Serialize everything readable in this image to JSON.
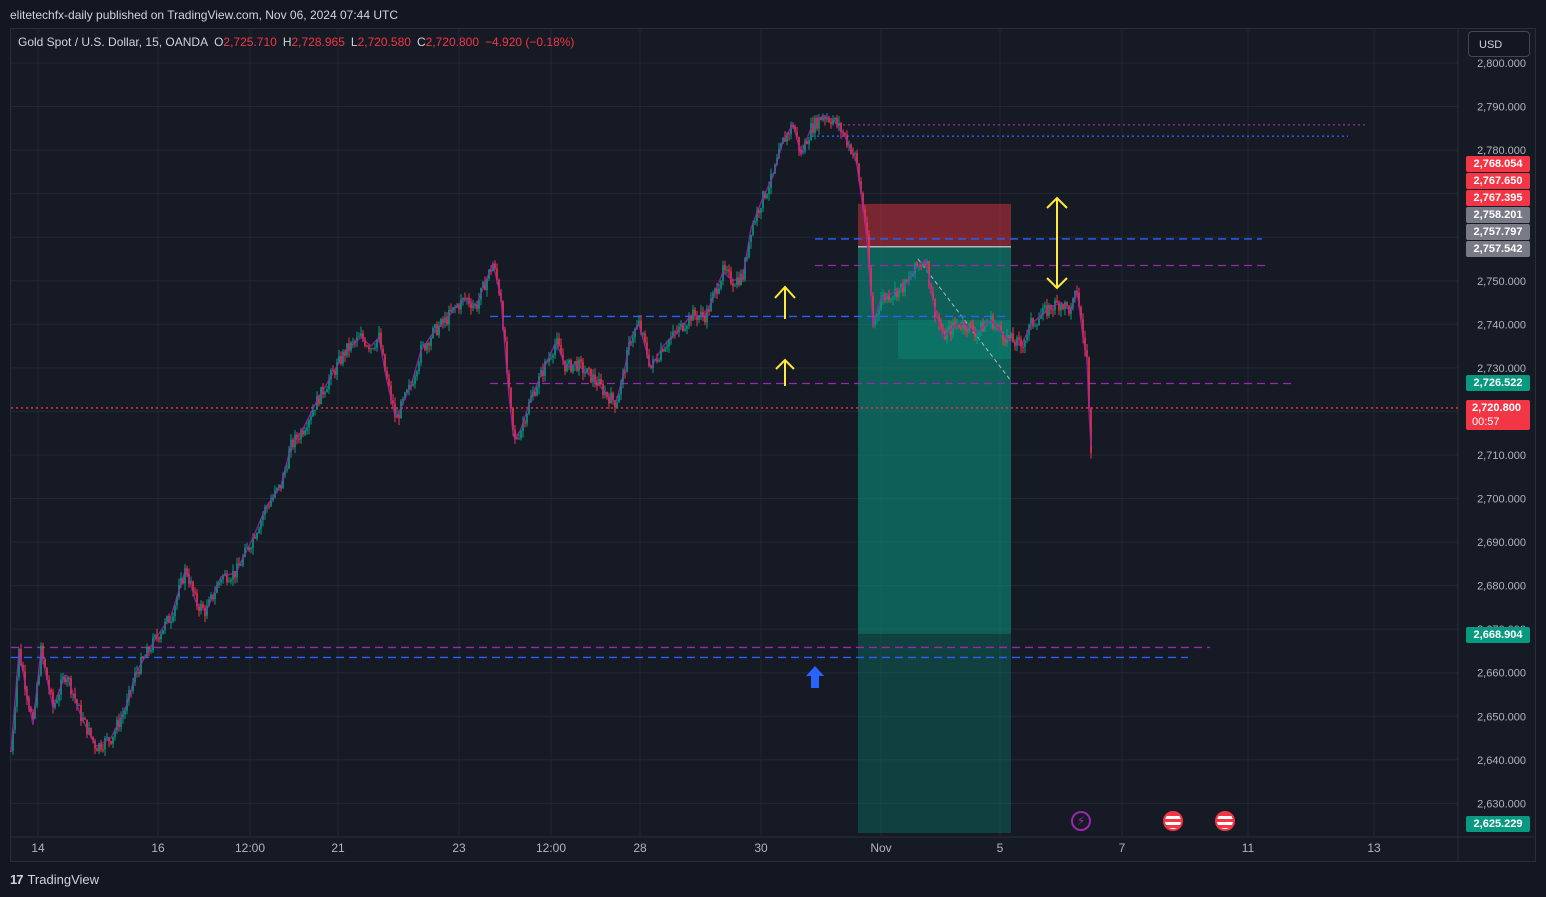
{
  "header": {
    "published": "elitetechfx-daily published on TradingView.com, Nov 06, 2024 07:44 UTC"
  },
  "symbol": {
    "name": "Gold Spot / U.S. Dollar, 15, OANDA",
    "open_label": "O",
    "open": "2,725.710",
    "high_label": "H",
    "high": "2,728.965",
    "low_label": "L",
    "low": "2,720.580",
    "close_label": "C",
    "close": "2,720.800",
    "change": "−4.920 (−0.18%)"
  },
  "currency": "USD",
  "price_axis": {
    "labels": [
      "2,800.000",
      "2,790.000",
      "2,780.000",
      "2,750.000",
      "2,740.000",
      "2,730.000",
      "2,710.000",
      "2,700.000",
      "2,690.000",
      "2,680.000",
      "2,670.000",
      "2,660.000",
      "2,650.000",
      "2,640.000",
      "2,630.000"
    ],
    "values": [
      2800,
      2790,
      2780,
      2750,
      2740,
      2730,
      2710,
      2700,
      2690,
      2680,
      2670,
      2660,
      2650,
      2640,
      2630
    ]
  },
  "price_tags": [
    {
      "label": "2,768.054",
      "color": "#f23645"
    },
    {
      "label": "2,767.650",
      "color": "#f23645"
    },
    {
      "label": "2,767.395",
      "color": "#f23645"
    },
    {
      "label": "2,758.201",
      "color": "#787b86"
    },
    {
      "label": "2,757.797",
      "color": "#787b86"
    },
    {
      "label": "2,757.542",
      "color": "#787b86"
    },
    {
      "label": "2,726.522",
      "color": "#089981"
    },
    {
      "label": "2,668.904",
      "color": "#089981"
    },
    {
      "label": "2,625.229",
      "color": "#089981"
    }
  ],
  "last_price": {
    "label": "2,720.800",
    "countdown": "00:57",
    "color": "#f23645"
  },
  "time_axis": {
    "labels": [
      "14",
      "16",
      "12:00",
      "21",
      "23",
      "12:00",
      "28",
      "30",
      "Nov",
      "5",
      "7",
      "11",
      "13"
    ]
  },
  "chart_data": {
    "type": "candlestick",
    "symbol": "XAUUSD",
    "timeframe": "15",
    "ylim": [
      2622,
      2805
    ],
    "y_axis_side": "right",
    "grid": true,
    "price_path": [
      [
        0,
        2642
      ],
      [
        8,
        2665
      ],
      [
        22,
        2648
      ],
      [
        30,
        2665
      ],
      [
        42,
        2652
      ],
      [
        55,
        2660
      ],
      [
        70,
        2650
      ],
      [
        85,
        2643
      ],
      [
        100,
        2645
      ],
      [
        115,
        2652
      ],
      [
        125,
        2660
      ],
      [
        145,
        2668
      ],
      [
        160,
        2673
      ],
      [
        175,
        2684
      ],
      [
        185,
        2676
      ],
      [
        195,
        2674
      ],
      [
        210,
        2682
      ],
      [
        225,
        2683
      ],
      [
        240,
        2690
      ],
      [
        255,
        2698
      ],
      [
        270,
        2703
      ],
      [
        280,
        2712
      ],
      [
        292,
        2716
      ],
      [
        305,
        2722
      ],
      [
        320,
        2728
      ],
      [
        335,
        2734
      ],
      [
        350,
        2737
      ],
      [
        360,
        2735
      ],
      [
        368,
        2737
      ],
      [
        375,
        2728
      ],
      [
        385,
        2718
      ],
      [
        392,
        2722
      ],
      [
        400,
        2726
      ],
      [
        410,
        2734
      ],
      [
        422,
        2738
      ],
      [
        435,
        2741
      ],
      [
        445,
        2744
      ],
      [
        455,
        2746
      ],
      [
        465,
        2744
      ],
      [
        475,
        2750
      ],
      [
        482,
        2754
      ],
      [
        490,
        2746
      ],
      [
        497,
        2726
      ],
      [
        503,
        2713
      ],
      [
        510,
        2716
      ],
      [
        520,
        2723
      ],
      [
        535,
        2731
      ],
      [
        545,
        2736
      ],
      [
        555,
        2730
      ],
      [
        565,
        2731
      ],
      [
        575,
        2729
      ],
      [
        585,
        2727
      ],
      [
        595,
        2724
      ],
      [
        605,
        2722
      ],
      [
        612,
        2728
      ],
      [
        620,
        2737
      ],
      [
        628,
        2740
      ],
      [
        640,
        2730
      ],
      [
        652,
        2735
      ],
      [
        665,
        2738
      ],
      [
        680,
        2742
      ],
      [
        695,
        2742
      ],
      [
        705,
        2748
      ],
      [
        712,
        2752
      ],
      [
        722,
        2750
      ],
      [
        732,
        2751
      ],
      [
        740,
        2762
      ],
      [
        750,
        2768
      ],
      [
        762,
        2774
      ],
      [
        772,
        2782
      ],
      [
        782,
        2786
      ],
      [
        790,
        2779
      ],
      [
        800,
        2785
      ],
      [
        812,
        2788
      ],
      [
        822,
        2787
      ],
      [
        832,
        2784
      ],
      [
        845,
        2778
      ],
      [
        855,
        2762
      ],
      [
        862,
        2740
      ],
      [
        870,
        2746
      ],
      [
        880,
        2747
      ],
      [
        895,
        2749
      ],
      [
        905,
        2753
      ],
      [
        915,
        2755
      ],
      [
        922,
        2745
      ],
      [
        932,
        2737
      ],
      [
        945,
        2740
      ],
      [
        955,
        2740
      ],
      [
        965,
        2738
      ],
      [
        980,
        2741
      ],
      [
        995,
        2737
      ],
      [
        1010,
        2735
      ],
      [
        1020,
        2740
      ],
      [
        1030,
        2742
      ],
      [
        1040,
        2744
      ],
      [
        1050,
        2745
      ],
      [
        1060,
        2743
      ],
      [
        1066,
        2748
      ],
      [
        1072,
        2737
      ],
      [
        1076,
        2732
      ],
      [
        1078,
        2720
      ],
      [
        1080,
        2712
      ]
    ],
    "moving_average": {
      "type": "MA",
      "color": "#9c27b0"
    },
    "last_close": 2720.8,
    "trade_position": {
      "type": "short",
      "entry": 2757.8,
      "stop_loss": 2767.65,
      "target": 2668.9,
      "time_start": "Oct 31 late",
      "time_end": "Nov 5"
    },
    "horizontal_levels": [
      {
        "price": 2785.8,
        "style": "dotted",
        "color": "#9c27b0"
      },
      {
        "price": 2783.2,
        "style": "dotted",
        "color": "#2962ff"
      },
      {
        "price": 2759.6,
        "style": "dashed",
        "color": "#2962ff"
      },
      {
        "price": 2753.5,
        "style": "dashed",
        "color": "#9c27b0"
      },
      {
        "price": 2741.8,
        "style": "dashed",
        "color": "#2962ff"
      },
      {
        "price": 2726.4,
        "style": "dashed",
        "color": "#9c27b0"
      },
      {
        "price": 2665.8,
        "style": "dashed",
        "color": "#9c27b0"
      },
      {
        "price": 2663.5,
        "style": "dashed",
        "color": "#2962ff"
      },
      {
        "price": 2720.8,
        "style": "dotted",
        "color": "#f23645"
      }
    ],
    "annotations": [
      {
        "type": "arrow-up",
        "color": "#ffeb3b"
      },
      {
        "type": "arrow-up",
        "color": "#ffeb3b"
      },
      {
        "type": "double-arrow-vertical",
        "color": "#ffeb3b"
      },
      {
        "type": "arrow-up-filled",
        "color": "#2962ff"
      }
    ]
  },
  "events": [
    {
      "icon": "lightning-event-icon",
      "color": "#9c27b0"
    },
    {
      "icon": "us-flag-event-icon",
      "color": "#f23645"
    },
    {
      "icon": "us-flag-event-icon",
      "color": "#f23645"
    }
  ],
  "footer": {
    "logo_mark": "17",
    "logo_text": "TradingView"
  }
}
